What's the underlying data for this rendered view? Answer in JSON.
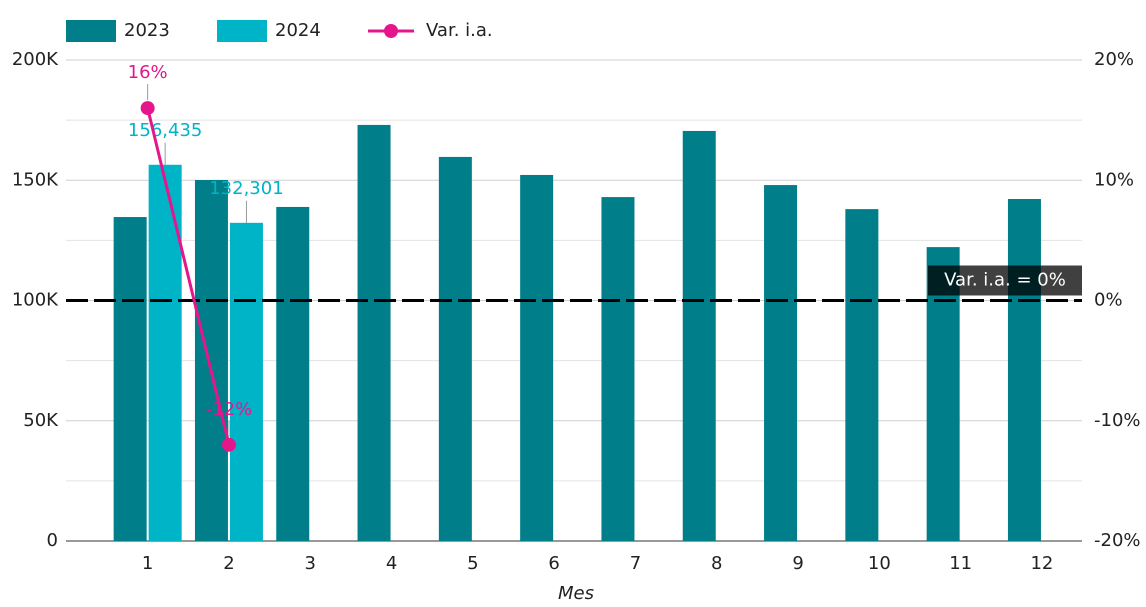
{
  "chart_data": {
    "type": "bar",
    "x_label": "Mes",
    "categories": [
      "1",
      "2",
      "3",
      "4",
      "5",
      "6",
      "7",
      "8",
      "9",
      "10",
      "11",
      "12"
    ],
    "series": [
      {
        "name": "2023",
        "color": "#007e8a",
        "values": [
          134700,
          150100,
          138900,
          173000,
          159700,
          152200,
          143000,
          170500,
          148000,
          138000,
          122200,
          142200
        ]
      },
      {
        "name": "2024",
        "color": "#00b4c8",
        "values": [
          156435,
          132301,
          null,
          null,
          null,
          null,
          null,
          null,
          null,
          null,
          null,
          null
        ],
        "value_labels": [
          "156,435",
          "132,301",
          null,
          null,
          null,
          null,
          null,
          null,
          null,
          null,
          null,
          null
        ]
      },
      {
        "name": "Var. i.a.",
        "type": "line",
        "axis": "y2",
        "color": "#e5168c",
        "values": [
          16,
          -12,
          null,
          null,
          null,
          null,
          null,
          null,
          null,
          null,
          null,
          null
        ],
        "value_labels": [
          "16%",
          "-12%",
          null,
          null,
          null,
          null,
          null,
          null,
          null,
          null,
          null,
          null
        ]
      }
    ],
    "ylim": [
      0,
      200000
    ],
    "yticks": [
      0,
      {
        "value": 50000,
        "label": "50K"
      },
      {
        "value": 100000,
        "label": "100K"
      },
      {
        "value": 150000,
        "label": "150K"
      },
      {
        "value": 200000,
        "label": "200K"
      }
    ],
    "minor_yticks": [
      25000,
      75000,
      125000,
      175000
    ],
    "y2lim": [
      -20,
      20
    ],
    "y2ticks": [
      {
        "value": -20,
        "label": "-20%"
      },
      {
        "value": -10,
        "label": "-10%"
      },
      {
        "value": 0,
        "label": "0%"
      },
      {
        "value": 10,
        "label": "10%"
      },
      {
        "value": 20,
        "label": "20%"
      }
    ],
    "reference_line": {
      "axis": "y2",
      "value": 0,
      "label": "Var. i.a. = 0%"
    },
    "grid": true,
    "legend": "top"
  }
}
